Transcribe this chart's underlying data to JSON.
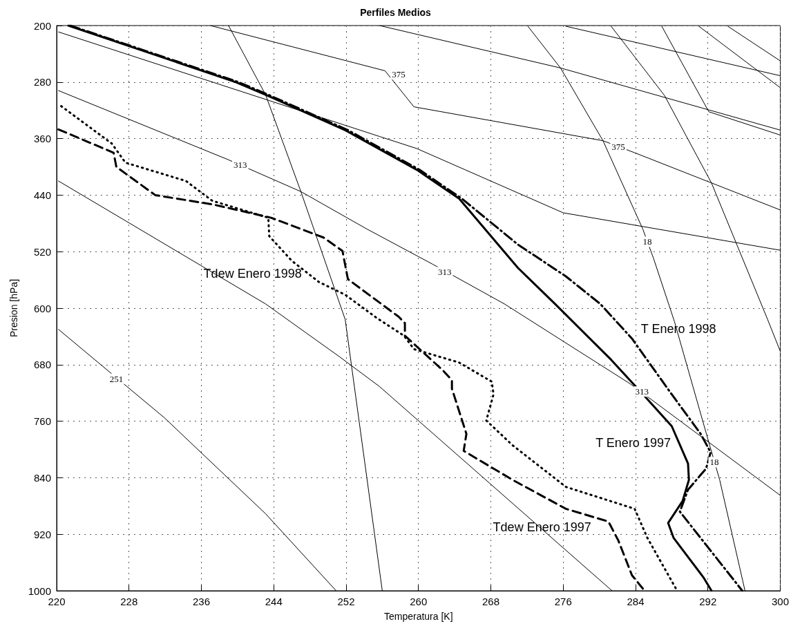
{
  "chart_data": {
    "type": "line",
    "title": "Perfiles Medios",
    "xlabel": "Temperatura [K]",
    "ylabel": "Presion [hPa]",
    "xlim": [
      220,
      300
    ],
    "xticks": [
      220,
      228,
      236,
      244,
      252,
      260,
      268,
      276,
      284,
      292,
      300
    ],
    "ylim": [
      1000,
      200
    ],
    "yticks": [
      200,
      280,
      360,
      440,
      520,
      600,
      680,
      760,
      840,
      920,
      1000
    ],
    "grid": true,
    "legend": false,
    "series": [
      {
        "name": "T Enero 1997",
        "color": "#000000",
        "line_style": "solid",
        "x": [
          221.3,
          239.8,
          243.1,
          251.9,
          259.8,
          264.5,
          271.0,
          275.1,
          281.3,
          285.1,
          288.0,
          289.8,
          289.9,
          289.2,
          287.6,
          288.2,
          291.5,
          292.4
        ],
        "values": [
          200,
          280,
          298,
          348,
          404,
          445,
          543,
          594,
          673,
          726,
          767,
          820,
          843,
          873,
          904,
          925,
          981,
          1000
        ]
      },
      {
        "name": "T Enero 1998",
        "color": "#000000",
        "line_style": "dashdot",
        "x": [
          221.5,
          240.1,
          243.4,
          252.2,
          260.1,
          264.8,
          271.0,
          276.3,
          280.1,
          283.6,
          288.0,
          291.2,
          292.3,
          291.8,
          289.8,
          288.9,
          292.1,
          295.8
        ],
        "values": [
          200,
          280,
          298,
          348,
          404,
          445,
          510,
          555,
          594,
          643,
          722,
          778,
          804,
          827,
          857,
          888,
          940,
          1000
        ]
      },
      {
        "name": "Tdew Enero 1998",
        "color": "#000000",
        "line_style": "dotted",
        "x": [
          220.5,
          226.1,
          227.6,
          234.3,
          237.2,
          243.4,
          243.5,
          246.0,
          249.0,
          251.9,
          255.4,
          258.4,
          259.5,
          264.5,
          268.1,
          268.3,
          267.5,
          270.4,
          276.3,
          283.9,
          285.3,
          288.6
        ],
        "values": [
          314,
          367,
          394,
          420,
          448,
          472,
          498,
          533,
          563,
          581,
          614,
          639,
          658,
          677,
          704,
          722,
          759,
          794,
          853,
          884,
          925,
          1000
        ]
      },
      {
        "name": "Tdew Enero 1997",
        "color": "#000000",
        "line_style": "dashed",
        "x": [
          220.2,
          226.3,
          226.6,
          230.9,
          237.2,
          243.7,
          249.5,
          251.6,
          252.2,
          257.8,
          258.5,
          258.5,
          262.7,
          263.7,
          263.7,
          265.3,
          265.0,
          270.4,
          276.3,
          281.0,
          282.1,
          283.6,
          285.0
        ],
        "values": [
          347,
          380,
          400,
          440,
          453,
          472,
          500,
          519,
          559,
          612,
          621,
          639,
          688,
          702,
          714,
          778,
          802,
          843,
          884,
          902,
          929,
          978,
          1000
        ]
      },
      {
        "color": "#000000",
        "line_style": "solid",
        "x": [
          220.2,
          255.7,
          259.8,
          276.0,
          300.0
        ],
        "values": [
          209,
          357,
          374,
          465,
          518
        ]
      },
      {
        "color": "#000000",
        "line_style": "solid",
        "x": [
          220.2,
          239.0,
          247.0,
          254.3,
          261.6,
          269.5,
          283.4,
          300.0
        ],
        "values": [
          292,
          390,
          435,
          488,
          538,
          594,
          707,
          865
        ]
      },
      {
        "color": "#000000",
        "line_style": "solid",
        "x": [
          220.2,
          243.1,
          251.3,
          255.7,
          281.4
        ],
        "values": [
          420,
          594,
          669,
          711,
          1000
        ]
      },
      {
        "color": "#000000",
        "line_style": "solid",
        "x": [
          220.2,
          231.9,
          243.1,
          250.9
        ],
        "values": [
          630,
          755,
          891,
          1000
        ]
      },
      {
        "color": "#000000",
        "line_style": "solid",
        "x": [
          239.0,
          243.1,
          247.0,
          251.9,
          256.0
        ],
        "values": [
          200,
          298,
          435,
          616,
          1000
        ]
      },
      {
        "color": "#000000",
        "line_style": "solid",
        "x": [
          237.0,
          256.3,
          259.5,
          280.4,
          283.9,
          300.0
        ],
        "values": [
          200,
          264,
          315,
          363,
          380,
          461
        ]
      },
      {
        "color": "#000000",
        "line_style": "solid",
        "x": [
          255.7,
          275.7,
          300.0
        ],
        "values": [
          200,
          260,
          348
        ]
      },
      {
        "color": "#000000",
        "line_style": "solid",
        "x": [
          272.1,
          275.7,
          280.4,
          284.8,
          286.0,
          288.3,
          292.1,
          293.3,
          296.1
        ],
        "values": [
          201,
          260,
          363,
          488,
          530,
          619,
          790,
          843,
          1000
        ]
      },
      {
        "color": "#000000",
        "line_style": "solid",
        "x": [
          281.3,
          287.2,
          292.4,
          298.6,
          300.0
        ],
        "values": [
          201,
          299,
          423,
          616,
          661
        ]
      },
      {
        "color": "#000000",
        "line_style": "solid",
        "x": [
          286.9,
          292.1,
          300.0
        ],
        "values": [
          201,
          322,
          355
        ]
      },
      {
        "color": "#000000",
        "line_style": "solid",
        "x": [
          291.0,
          300.0
        ],
        "values": [
          201,
          288
        ]
      },
      {
        "color": "#000000",
        "line_style": "solid",
        "x": [
          294.2,
          300.0
        ],
        "values": [
          201,
          250
        ]
      },
      {
        "color": "#000000",
        "line_style": "solid",
        "x": [
          276.3,
          300.0
        ],
        "values": [
          201,
          271
        ]
      }
    ],
    "annotations": [
      {
        "text": "375",
        "x": 257.8,
        "y": 269
      },
      {
        "text": "375",
        "x": 282.1,
        "y": 372
      },
      {
        "text": "313",
        "x": 240.3,
        "y": 397
      },
      {
        "text": "313",
        "x": 262.9,
        "y": 549
      },
      {
        "text": "313",
        "x": 284.7,
        "y": 718
      },
      {
        "text": "251",
        "x": 226.6,
        "y": 700
      },
      {
        "text": "18",
        "x": 285.3,
        "y": 506
      },
      {
        "text": "18",
        "x": 292.7,
        "y": 818
      }
    ]
  }
}
